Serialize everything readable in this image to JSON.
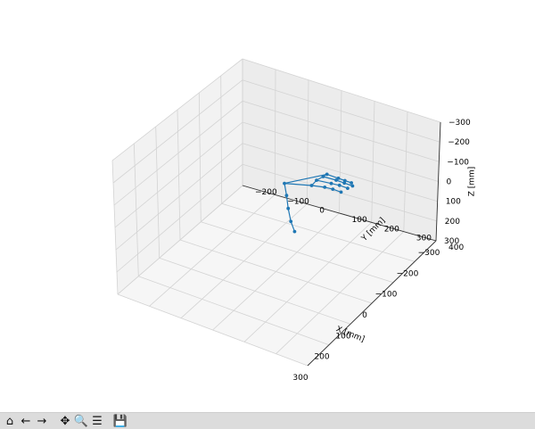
{
  "toolbar": {
    "buttons": [
      {
        "name": "home-icon",
        "glyph": "⌂"
      },
      {
        "name": "back-icon",
        "glyph": "←"
      },
      {
        "name": "forward-icon",
        "glyph": "→"
      },
      {
        "name": "pan-icon",
        "glyph": "✥"
      },
      {
        "name": "zoom-icon",
        "glyph": "🔍"
      },
      {
        "name": "configure-subplots-icon",
        "glyph": "☰"
      },
      {
        "name": "save-icon",
        "glyph": "💾"
      }
    ]
  },
  "chart_data": {
    "type": "scatter3d-line",
    "xlabel": "X [mm]",
    "ylabel": "Y [mm]",
    "zlabel": "Z [mm]",
    "x_ticks": [
      "300",
      "200",
      "100",
      "0",
      "−100",
      "−200",
      "−300"
    ],
    "y_ticks": [
      "−200",
      "−100",
      "0",
      "100",
      "200",
      "300",
      "400"
    ],
    "z_ticks": [
      "300",
      "200",
      "100",
      "0",
      "−100",
      "−200",
      "−300"
    ],
    "xlim": [
      -300,
      300
    ],
    "ylim": [
      -200,
      400
    ],
    "zlim": [
      -300,
      300
    ],
    "color": "#1f77b4",
    "grid": true,
    "hand_points": [
      {
        "x": 20,
        "y": 140,
        "z": 160
      },
      {
        "x": 70,
        "y": 180,
        "z": 170
      },
      {
        "x": 100,
        "y": 205,
        "z": 150
      },
      {
        "x": 125,
        "y": 230,
        "z": 125
      },
      {
        "x": 145,
        "y": 255,
        "z": 110
      },
      {
        "x": 30,
        "y": 230,
        "z": 210
      },
      {
        "x": 30,
        "y": 270,
        "z": 225
      },
      {
        "x": 30,
        "y": 295,
        "z": 230
      },
      {
        "x": 30,
        "y": 320,
        "z": 230
      },
      {
        "x": 0,
        "y": 225,
        "z": 205
      },
      {
        "x": 0,
        "y": 270,
        "z": 215
      },
      {
        "x": 0,
        "y": 295,
        "z": 220
      },
      {
        "x": 0,
        "y": 320,
        "z": 220
      },
      {
        "x": -30,
        "y": 225,
        "z": 195
      },
      {
        "x": -30,
        "y": 265,
        "z": 200
      },
      {
        "x": -30,
        "y": 290,
        "z": 200
      },
      {
        "x": -30,
        "y": 315,
        "z": 200
      },
      {
        "x": -55,
        "y": 220,
        "z": 180
      },
      {
        "x": -55,
        "y": 255,
        "z": 180
      },
      {
        "x": -55,
        "y": 275,
        "z": 180
      },
      {
        "x": -55,
        "y": 295,
        "z": 180
      }
    ],
    "connections": [
      [
        0,
        1
      ],
      [
        1,
        2
      ],
      [
        2,
        3
      ],
      [
        3,
        4
      ],
      [
        0,
        5
      ],
      [
        5,
        6
      ],
      [
        6,
        7
      ],
      [
        7,
        8
      ],
      [
        5,
        9
      ],
      [
        9,
        10
      ],
      [
        10,
        11
      ],
      [
        11,
        12
      ],
      [
        9,
        13
      ],
      [
        13,
        14
      ],
      [
        14,
        15
      ],
      [
        15,
        16
      ],
      [
        13,
        17
      ],
      [
        17,
        18
      ],
      [
        18,
        19
      ],
      [
        19,
        20
      ],
      [
        0,
        17
      ]
    ]
  }
}
